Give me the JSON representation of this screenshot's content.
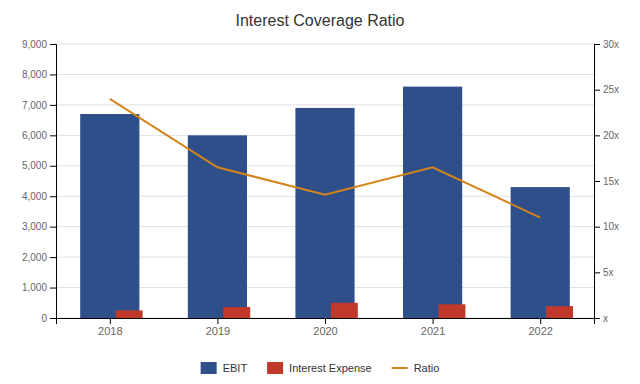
{
  "chart_data": {
    "type": "bar",
    "title": "Interest Coverage Ratio",
    "categories": [
      "2018",
      "2019",
      "2020",
      "2021",
      "2022"
    ],
    "series": [
      {
        "name": "EBIT",
        "color": "#2e4f8a",
        "values": [
          6700,
          6000,
          6900,
          7600,
          4300
        ]
      },
      {
        "name": "Interest Expense",
        "color": "#c0392b",
        "values": [
          250,
          360,
          500,
          450,
          390
        ]
      },
      {
        "name": "Ratio",
        "color": "#d4841a",
        "values": [
          24.0,
          16.5,
          13.5,
          16.5,
          11.0
        ],
        "type": "line",
        "axis": "y2"
      }
    ],
    "ylim": [
      0,
      9000
    ],
    "yticks": [
      0,
      {
        "value": 1000,
        "label": "1,000"
      },
      {
        "value": 2000,
        "label": "2,000"
      },
      {
        "value": 3000,
        "label": "3,000"
      },
      {
        "value": 4000,
        "label": "4,000"
      },
      {
        "value": 5000,
        "label": "5,000"
      },
      {
        "value": 6000,
        "label": "6,000"
      },
      {
        "value": 7000,
        "label": "7,000"
      },
      {
        "value": 8000,
        "label": "8,000"
      },
      {
        "value": 9000,
        "label": "9,000"
      }
    ],
    "y2lim": [
      0,
      30
    ],
    "y2ticks": [
      {
        "value": 0,
        "label": "x"
      },
      {
        "value": 5,
        "label": "5x"
      },
      {
        "value": 10,
        "label": "10x"
      },
      {
        "value": 15,
        "label": "15x"
      },
      {
        "value": 20,
        "label": "20x"
      },
      {
        "value": 25,
        "label": "25x"
      },
      {
        "value": 30,
        "label": "30x"
      }
    ],
    "grid": true,
    "legend": "bottom"
  }
}
